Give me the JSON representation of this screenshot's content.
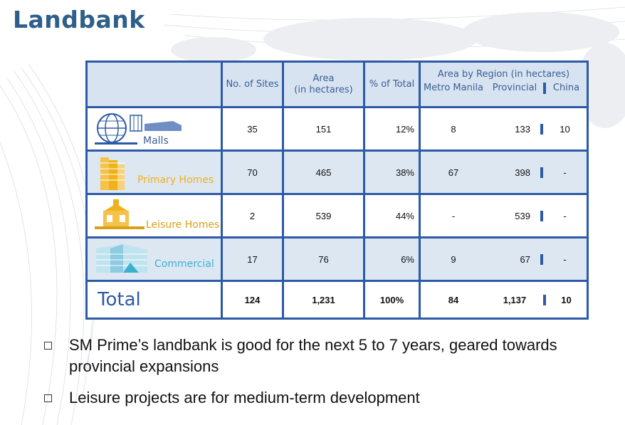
{
  "title": "Landbank",
  "table": {
    "headers": {
      "sites": "No. of Sites",
      "area_line1": "Area",
      "area_line2": "(in hectares)",
      "pct": "% of Total",
      "region": "Area by Region (in hectares)",
      "metro": "Metro Manila",
      "provincial": "Provincial",
      "china": "China"
    },
    "rows": [
      {
        "name": "Malls",
        "sites": "35",
        "area": "151",
        "pct": "12%",
        "metro": "8",
        "provincial": "133",
        "china": "10"
      },
      {
        "name": "Primary Homes",
        "sites": "70",
        "area": "465",
        "pct": "38%",
        "metro": "67",
        "provincial": "398",
        "china": "-"
      },
      {
        "name": "Leisure Homes",
        "sites": "2",
        "area": "539",
        "pct": "44%",
        "metro": "-",
        "provincial": "539",
        "china": "-"
      },
      {
        "name": "Commercial",
        "sites": "17",
        "area": "76",
        "pct": "6%",
        "metro": "9",
        "provincial": "67",
        "china": "-"
      }
    ],
    "total": {
      "label": "Total",
      "sites": "124",
      "area": "1,231",
      "pct": "100%",
      "metro": "84",
      "provincial": "1,137",
      "china": "10"
    }
  },
  "bullets": [
    "SM Prime’s landbank is good for the next 5 to 7 years, geared towards provincial expansions",
    "Leisure projects are for medium-term development"
  ],
  "icons": {
    "malls": "globe-building-icon",
    "primary_homes": "condo-tower-icon",
    "leisure_homes": "house-icon",
    "commercial": "office-building-icon"
  },
  "colors": {
    "title": "#2e5f8a",
    "table_border": "#2c5aa8",
    "header_bg": "#d7e3f1",
    "row_alt_bg": "#dde7f2",
    "primary_label": "#f0b21a",
    "commercial_label": "#3cb0d2"
  }
}
